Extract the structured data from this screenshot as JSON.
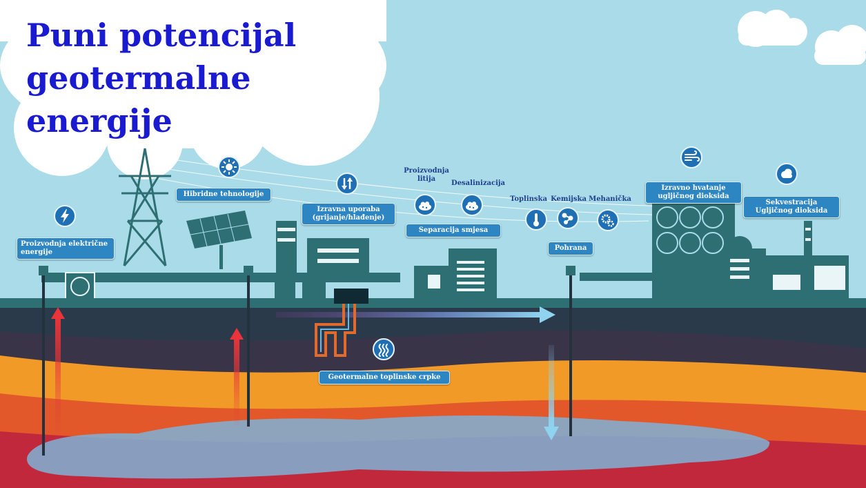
{
  "title": {
    "line1": "Puni potencijal",
    "line2": "geotermalne",
    "line3": "energije"
  },
  "labels": {
    "electricity": "Proizvodnja električne\nenergije",
    "hybrid": "Hibridne tehnologije",
    "direct_use": "Izravna uporaba\n(grijanje/hlađenje)",
    "lithium": "Proizvodnja\nlitija",
    "desalination": "Desalinizacija",
    "separation": "Separacija smjesa",
    "thermal": "Toplinska",
    "chemical": "Kemijska",
    "mechanical": "Mehanička",
    "storage": "Pohrana",
    "direct_capture": "Izravno hvatanje\nugljičnog dioksida",
    "sequestration": "Sekvestracija\nUgljičnog dioksida",
    "heat_pumps": "Geotermalne toplinske crpke"
  },
  "icons": {
    "electricity": "lightning-icon",
    "hybrid": "sun-icon",
    "direct_use": "up-down-arrows-icon",
    "lithium": "rocks-icon",
    "desalination": "rocks-icon",
    "thermal": "thermometer-icon",
    "chemical": "molecule-icon",
    "mechanical": "gears-icon",
    "direct_capture": "wind-icon",
    "sequestration": "cloud-icon",
    "heat_pumps": "heat-waves-icon"
  },
  "colors": {
    "sky": "#a9dbe8",
    "cloud": "#ffffff",
    "title": "#1a1ad0",
    "industry": "#2e6f73",
    "label_bg": "#2d86c2",
    "icon_bg": "#1f6fb5",
    "layer_dark": "#2d3e4e",
    "layer_purple": "#3a3448",
    "layer_orange": "#f29a28",
    "layer_red": "#c2283c",
    "reservoir": "#7fb2d6"
  }
}
